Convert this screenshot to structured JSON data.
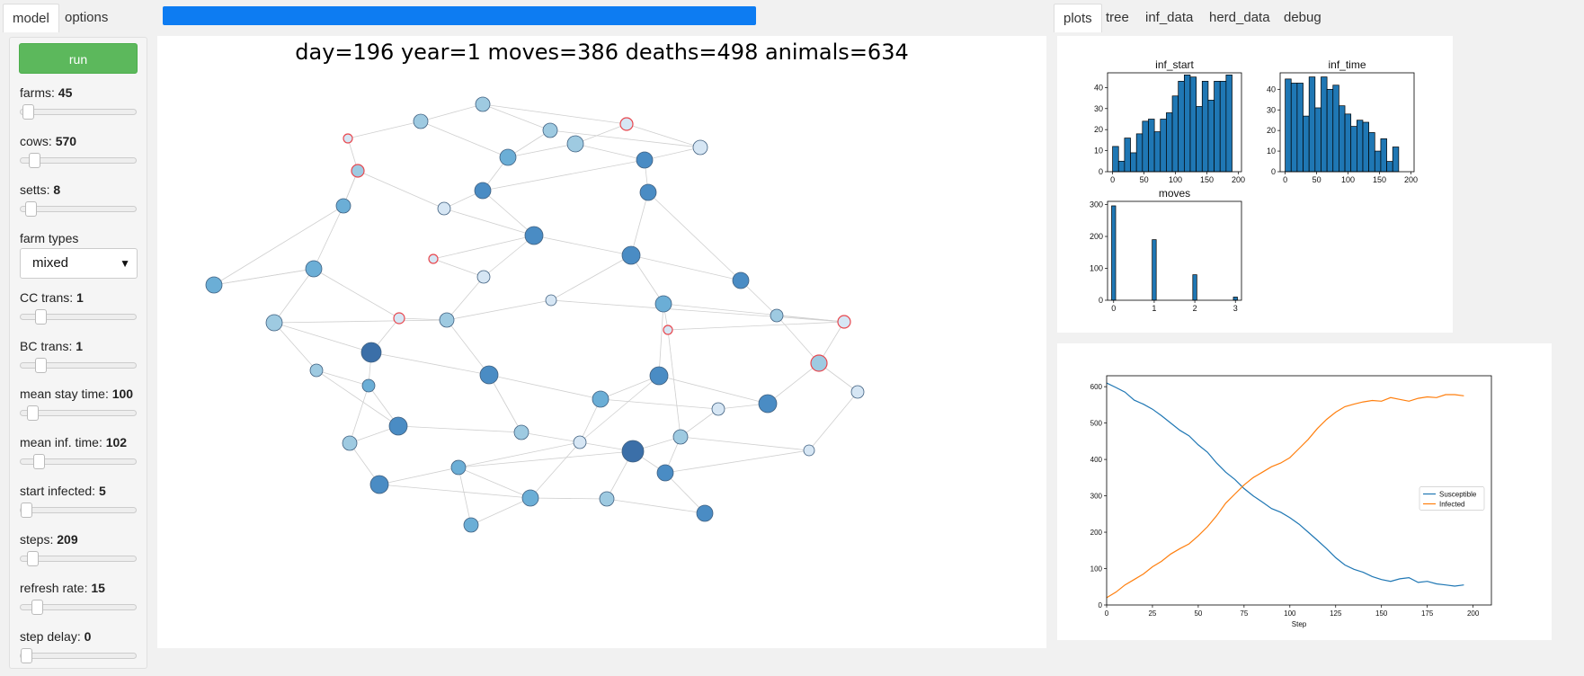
{
  "tabs_left": [
    {
      "label": "model",
      "active": true
    },
    {
      "label": "options",
      "active": false
    }
  ],
  "progress": {
    "fraction": 1.0,
    "color": "#0d7cf2"
  },
  "tabs_right": [
    {
      "label": "plots",
      "active": true
    },
    {
      "label": "tree",
      "active": false
    },
    {
      "label": "inf_data",
      "active": false
    },
    {
      "label": "herd_data",
      "active": false
    },
    {
      "label": "debug",
      "active": false
    }
  ],
  "sidebar": {
    "run_label": "run",
    "controls": [
      {
        "name": "farms",
        "value": "45",
        "fraction": 0.02
      },
      {
        "name": "cows",
        "value": "570",
        "fraction": 0.08
      },
      {
        "name": "setts",
        "value": "8",
        "fraction": 0.04
      }
    ],
    "farm_types_label": "farm types",
    "farm_types_value": "mixed",
    "controls2": [
      {
        "name": "CC trans",
        "value": "1",
        "fraction": 0.14
      },
      {
        "name": "BC trans",
        "value": "1",
        "fraction": 0.14
      },
      {
        "name": "mean stay time",
        "value": "100",
        "fraction": 0.06
      },
      {
        "name": "mean inf. time",
        "value": "102",
        "fraction": 0.12
      },
      {
        "name": "start infected",
        "value": "5",
        "fraction": 0.0
      },
      {
        "name": "steps",
        "value": "209",
        "fraction": 0.06
      },
      {
        "name": "refresh rate",
        "value": "15",
        "fraction": 0.1
      },
      {
        "name": "step delay",
        "value": "0",
        "fraction": 0.0
      }
    ]
  },
  "status_text": "day=196 year=1 moves=386 deaths=498 animals=634",
  "network": {
    "node_fill_scale": [
      "#d6e6f4",
      "#9ecae1",
      "#6baed6",
      "#4a8cc4",
      "#3b6fa8"
    ],
    "infected_stroke": "#e8484f"
  },
  "chart_data": [
    {
      "type": "bar",
      "title": "inf_start",
      "xlim": [
        -8,
        205
      ],
      "ylim": [
        0,
        47
      ],
      "xticks": [
        0,
        50,
        100,
        150,
        200
      ],
      "yticks": [
        0,
        10,
        20,
        30,
        40
      ],
      "bin_start": 0,
      "bin_width": 9.5,
      "values": [
        12,
        5,
        16,
        9,
        18,
        24,
        25,
        19,
        25,
        28,
        36,
        43,
        46,
        45,
        31,
        43,
        34,
        43,
        43,
        46
      ]
    },
    {
      "type": "bar",
      "title": "inf_time",
      "xlim": [
        -8,
        205
      ],
      "ylim": [
        0,
        48
      ],
      "xticks": [
        0,
        50,
        100,
        150,
        200
      ],
      "yticks": [
        0,
        10,
        20,
        30,
        40
      ],
      "bin_start": 0,
      "bin_width": 9.5,
      "values": [
        45,
        43,
        43,
        27,
        46,
        31,
        46,
        40,
        42,
        32,
        28,
        22,
        25,
        24,
        19,
        10,
        16,
        5,
        12,
        0
      ]
    },
    {
      "type": "bar",
      "title": "moves",
      "xlim": [
        -0.15,
        3.15
      ],
      "ylim": [
        0,
        310
      ],
      "xticks": [
        0,
        1,
        2,
        3
      ],
      "yticks": [
        0,
        100,
        200,
        300
      ],
      "bin_start": -0.05,
      "bin_width": 0.1,
      "values": [
        296,
        0,
        0,
        0,
        0,
        0,
        0,
        0,
        0,
        0,
        190,
        0,
        0,
        0,
        0,
        0,
        0,
        0,
        0,
        0,
        80,
        0,
        0,
        0,
        0,
        0,
        0,
        0,
        0,
        0,
        10
      ]
    },
    {
      "type": "line",
      "xlabel": "Step",
      "ylabel": "",
      "xlim": [
        0,
        210
      ],
      "ylim": [
        0,
        630
      ],
      "xticks": [
        0,
        25,
        50,
        75,
        100,
        125,
        150,
        175,
        200
      ],
      "yticks": [
        0,
        100,
        200,
        300,
        400,
        500,
        600
      ],
      "legend_position": "center-right",
      "series": [
        {
          "name": "Susceptible",
          "color": "#1f77b4",
          "points": [
            [
              0,
              610
            ],
            [
              5,
              598
            ],
            [
              10,
              585
            ],
            [
              15,
              563
            ],
            [
              20,
              552
            ],
            [
              25,
              538
            ],
            [
              30,
              520
            ],
            [
              35,
              500
            ],
            [
              40,
              480
            ],
            [
              45,
              465
            ],
            [
              50,
              440
            ],
            [
              55,
              420
            ],
            [
              60,
              390
            ],
            [
              65,
              365
            ],
            [
              70,
              345
            ],
            [
              75,
              320
            ],
            [
              80,
              300
            ],
            [
              85,
              283
            ],
            [
              90,
              265
            ],
            [
              95,
              255
            ],
            [
              100,
              240
            ],
            [
              105,
              222
            ],
            [
              110,
              200
            ],
            [
              115,
              178
            ],
            [
              120,
              155
            ],
            [
              125,
              130
            ],
            [
              130,
              110
            ],
            [
              135,
              98
            ],
            [
              140,
              90
            ],
            [
              145,
              78
            ],
            [
              150,
              70
            ],
            [
              155,
              65
            ],
            [
              160,
              72
            ],
            [
              165,
              75
            ],
            [
              170,
              62
            ],
            [
              175,
              65
            ],
            [
              180,
              58
            ],
            [
              185,
              55
            ],
            [
              190,
              52
            ],
            [
              195,
              55
            ]
          ]
        },
        {
          "name": "Infected",
          "color": "#ff7f0e",
          "points": [
            [
              0,
              20
            ],
            [
              5,
              35
            ],
            [
              10,
              55
            ],
            [
              15,
              70
            ],
            [
              20,
              85
            ],
            [
              25,
              105
            ],
            [
              30,
              120
            ],
            [
              35,
              140
            ],
            [
              40,
              155
            ],
            [
              45,
              168
            ],
            [
              50,
              190
            ],
            [
              55,
              215
            ],
            [
              60,
              245
            ],
            [
              65,
              280
            ],
            [
              70,
              305
            ],
            [
              75,
              330
            ],
            [
              80,
              350
            ],
            [
              85,
              365
            ],
            [
              90,
              380
            ],
            [
              95,
              390
            ],
            [
              100,
              405
            ],
            [
              105,
              430
            ],
            [
              110,
              455
            ],
            [
              115,
              485
            ],
            [
              120,
              510
            ],
            [
              125,
              530
            ],
            [
              130,
              545
            ],
            [
              135,
              552
            ],
            [
              140,
              558
            ],
            [
              145,
              562
            ],
            [
              150,
              560
            ],
            [
              155,
              570
            ],
            [
              160,
              565
            ],
            [
              165,
              560
            ],
            [
              170,
              568
            ],
            [
              175,
              572
            ],
            [
              180,
              570
            ],
            [
              185,
              578
            ],
            [
              190,
              578
            ],
            [
              195,
              575
            ]
          ]
        }
      ]
    }
  ]
}
